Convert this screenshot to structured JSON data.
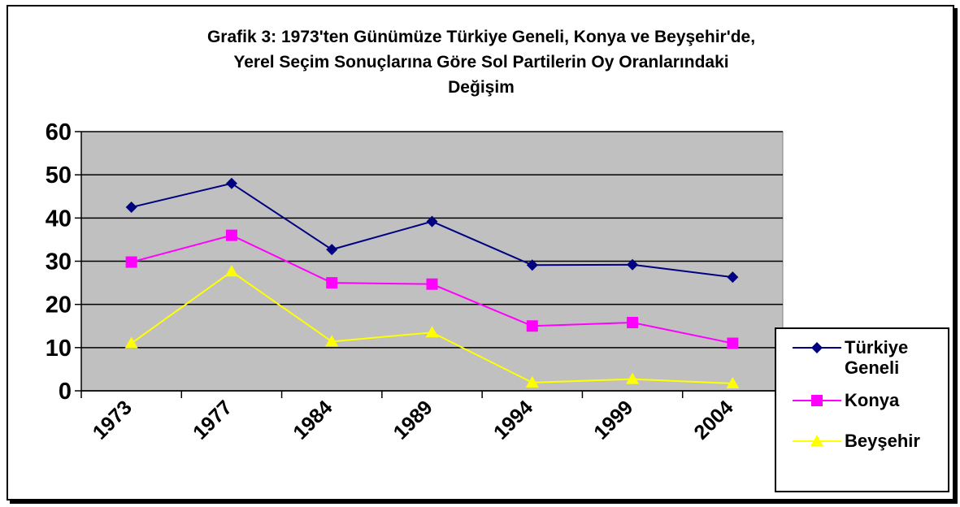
{
  "chart_data": {
    "type": "line",
    "title": [
      "Grafik 3: 1973'ten Günümüze Türkiye Geneli, Konya ve Beyşehir'de,",
      "Yerel Seçim Sonuçlarına Göre Sol Partilerin Oy Oranlarındaki",
      "Değişim"
    ],
    "categories": [
      "1973",
      "1977",
      "1984",
      "1989",
      "1994",
      "1999",
      "2004"
    ],
    "series": [
      {
        "name": "Türkiye Geneli",
        "color": "#000080",
        "marker": "diamond",
        "values": [
          42.5,
          48,
          32.7,
          39.2,
          29.1,
          29.2,
          26.3
        ]
      },
      {
        "name": "Konya",
        "color": "#ff00ff",
        "marker": "square",
        "values": [
          29.8,
          36,
          25,
          24.7,
          15,
          15.8,
          11
        ]
      },
      {
        "name": "Beyşehir",
        "color": "#ffff00",
        "marker": "triangle",
        "values": [
          11,
          27.6,
          11.4,
          13.5,
          1.9,
          2.7,
          1.7
        ]
      }
    ],
    "ylim": [
      0,
      60
    ],
    "yticks": [
      0,
      10,
      20,
      30,
      40,
      50,
      60
    ],
    "grid": true,
    "plot_background": "#c0c0c0",
    "legend": "right"
  }
}
